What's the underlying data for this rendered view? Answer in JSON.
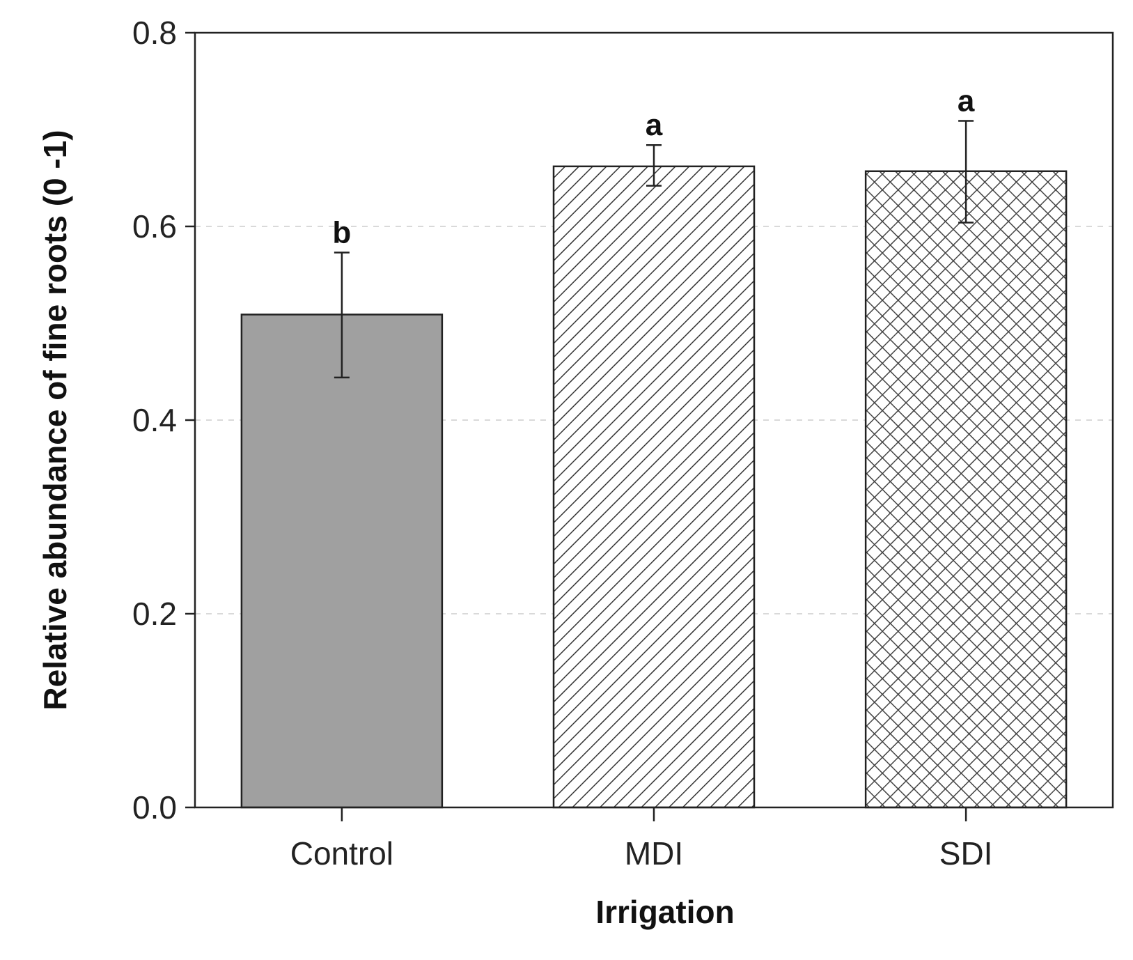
{
  "chart_data": {
    "type": "bar",
    "title": "",
    "xlabel": "Irrigation",
    "ylabel": "Relative abundance of fine roots (0 -1)",
    "categories": [
      "Control",
      "MDI",
      "SDI"
    ],
    "values": [
      0.509,
      0.662,
      0.657
    ],
    "error_upper": [
      0.573,
      0.684,
      0.709
    ],
    "error_lower": [
      0.444,
      0.642,
      0.604
    ],
    "significance_letters": [
      "b",
      "a",
      "a"
    ],
    "bar_fills": [
      "solid-gray",
      "diagonal-hatch",
      "cross-hatch"
    ],
    "colors": {
      "solid": "#a0a0a0",
      "hatch": "#333333",
      "grid": "#d9d9d9"
    },
    "ylim": [
      0,
      0.8
    ],
    "yticks": [
      "0.0",
      "0.2",
      "0.4",
      "0.6",
      "0.8"
    ],
    "grid": "horizontal dashed",
    "legend": "none"
  }
}
